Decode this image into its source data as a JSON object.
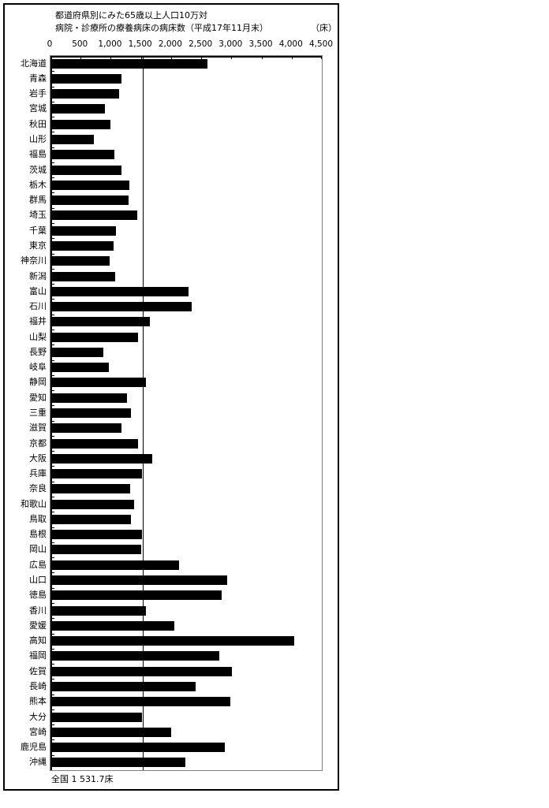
{
  "chart_data": {
    "type": "bar",
    "orientation": "horizontal",
    "title_line1": "都道府県別にみた65歳以上人口10万対",
    "title_line2": "病院・診療所の療養病床の病床数（平成17年11月末）",
    "unit_label": "（床）",
    "xlabel": "",
    "ylabel": "",
    "xlim": [
      0,
      4500
    ],
    "x_ticks": [
      0,
      500,
      1000,
      1500,
      2000,
      2500,
      3000,
      3500,
      4000,
      4500
    ],
    "x_tick_labels": [
      "0",
      "500",
      "1,000",
      "1,500",
      "2,000",
      "2,500",
      "3,000",
      "3,500",
      "4,000",
      "4,500"
    ],
    "grid": "off",
    "legend": "none",
    "bar_color": "#000000",
    "reference_line": {
      "value": 1531.7,
      "label": "全国 1 531.7床"
    },
    "categories": [
      "北海道",
      "青森",
      "岩手",
      "宮城",
      "秋田",
      "山形",
      "福島",
      "茨城",
      "栃木",
      "群馬",
      "埼玉",
      "千葉",
      "東京",
      "神奈川",
      "新潟",
      "富山",
      "石川",
      "福井",
      "山梨",
      "長野",
      "岐阜",
      "静岡",
      "愛知",
      "三重",
      "滋賀",
      "京都",
      "大阪",
      "兵庫",
      "奈良",
      "和歌山",
      "鳥取",
      "島根",
      "岡山",
      "広島",
      "山口",
      "徳島",
      "香川",
      "愛媛",
      "高知",
      "福岡",
      "佐賀",
      "長崎",
      "熊本",
      "大分",
      "宮崎",
      "鹿児島",
      "沖縄"
    ],
    "values": [
      2595,
      1160,
      1120,
      890,
      975,
      700,
      1040,
      1160,
      1300,
      1280,
      1425,
      1070,
      1030,
      965,
      1065,
      2270,
      2325,
      1630,
      1435,
      860,
      950,
      1575,
      1250,
      1320,
      1160,
      1435,
      1670,
      1500,
      1305,
      1370,
      1315,
      1500,
      1490,
      2115,
      2920,
      2830,
      1565,
      2035,
      4035,
      2790,
      2990,
      2395,
      2970,
      1500,
      1985,
      2875,
      2230
    ]
  },
  "footer": {
    "national_label": "全国 1 531.7床"
  }
}
